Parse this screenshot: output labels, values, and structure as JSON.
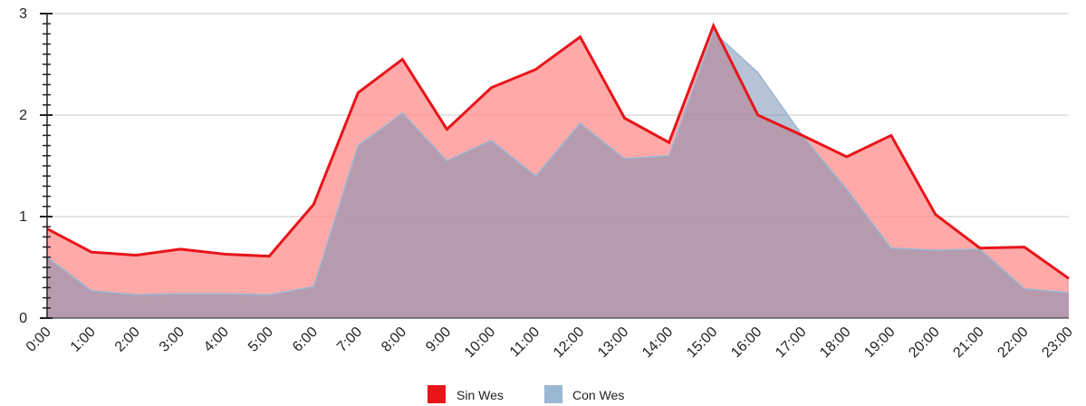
{
  "chart_data": {
    "type": "area",
    "categories": [
      "0:00",
      "1:00",
      "2:00",
      "3:00",
      "4:00",
      "5:00",
      "6:00",
      "7:00",
      "8:00",
      "9:00",
      "10:00",
      "11:00",
      "12:00",
      "13:00",
      "14:00",
      "15:00",
      "16:00",
      "17:00",
      "18:00",
      "19:00",
      "20:00",
      "21:00",
      "22:00",
      "23:00"
    ],
    "series": [
      {
        "name": "Sin Wes",
        "color": "#e8141a",
        "fill": "#ff8c8c",
        "values": [
          0.88,
          0.65,
          0.62,
          0.68,
          0.63,
          0.61,
          1.12,
          2.22,
          2.55,
          1.86,
          2.27,
          2.45,
          2.77,
          1.97,
          1.73,
          2.88,
          2.0,
          1.8,
          1.59,
          1.8,
          1.02,
          0.69,
          0.7,
          0.39
        ]
      },
      {
        "name": "Con Wes",
        "color": "#9bb8d3",
        "fill": "#a8c4de",
        "values": [
          0.6,
          0.27,
          0.23,
          0.24,
          0.24,
          0.23,
          0.31,
          1.7,
          2.02,
          1.55,
          1.75,
          1.4,
          1.92,
          1.57,
          1.6,
          2.82,
          2.42,
          1.8,
          1.27,
          0.69,
          0.67,
          0.68,
          0.29,
          0.25
        ]
      }
    ],
    "yticks": [
      0,
      1,
      2,
      3
    ],
    "ylim": [
      0,
      3
    ],
    "grid": true,
    "legend": "bottom-center"
  }
}
